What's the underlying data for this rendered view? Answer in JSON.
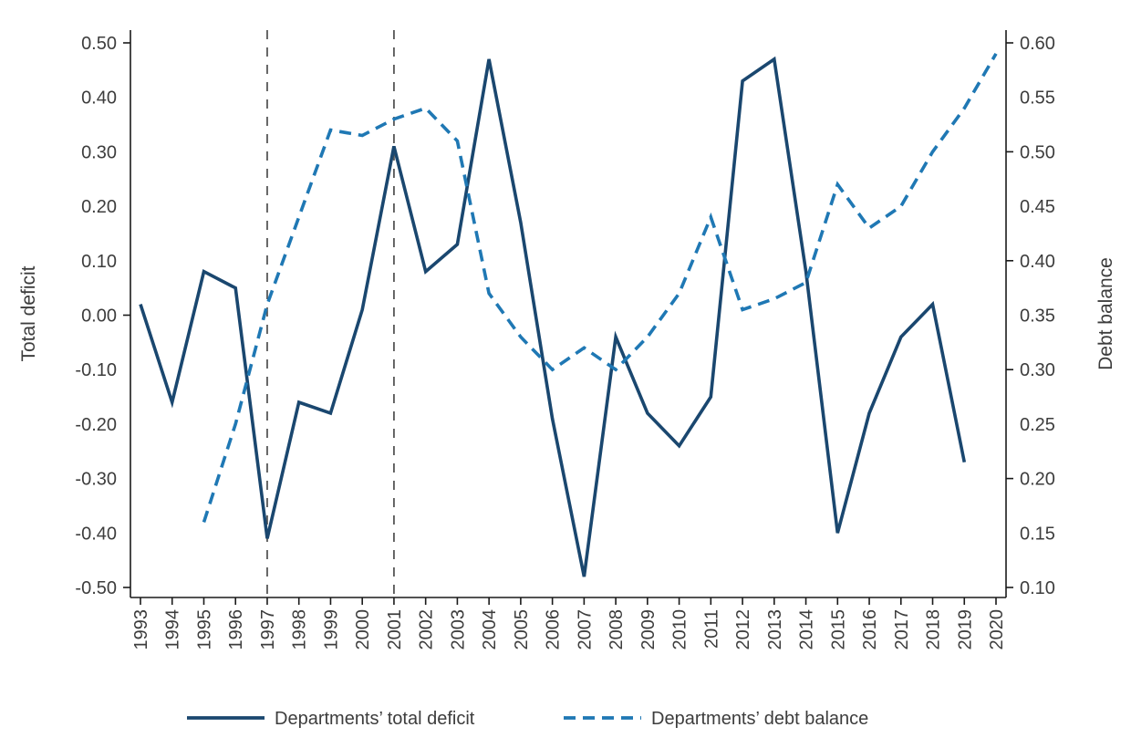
{
  "figure": {
    "background": "#ffffff"
  },
  "styles": {
    "axis_color": "#1a1a1a",
    "text_color": "#3d3d3d",
    "ref_line_color": "#4d4d4d"
  },
  "chart_data": {
    "type": "line",
    "title": "",
    "x": {
      "label": "",
      "range": [
        1993,
        2020
      ],
      "ticks": [
        1993,
        1994,
        1995,
        1996,
        1997,
        1998,
        1999,
        2000,
        2001,
        2002,
        2003,
        2004,
        2005,
        2006,
        2007,
        2008,
        2009,
        2010,
        2011,
        2012,
        2013,
        2014,
        2015,
        2016,
        2017,
        2018,
        2019,
        2020
      ]
    },
    "left_axis": {
      "title": "Total deficit",
      "range": [
        -0.5,
        0.5
      ],
      "labels": [
        0.5,
        0.4,
        0.3,
        0.2,
        0.1,
        0.0,
        -0.1,
        -0.2,
        -0.3,
        -0.4,
        -0.5
      ],
      "tick_marks": [
        0.5,
        0.0,
        -0.5
      ]
    },
    "right_axis": {
      "title": "Debt balance",
      "range": [
        0.1,
        0.6
      ],
      "labels": [
        0.6,
        0.55,
        0.5,
        0.45,
        0.4,
        0.35,
        0.3,
        0.25,
        0.2,
        0.15,
        0.1
      ],
      "tick_marks": [
        0.6,
        0.5,
        0.4,
        0.3,
        0.2,
        0.1
      ]
    },
    "reference_lines_x": [
      1997,
      2001
    ],
    "grid": false,
    "legend_position": "bottom",
    "series": [
      {
        "name": "Departments’ total deficit",
        "axis": "left",
        "style": "solid",
        "color": "#1a476f",
        "points": [
          [
            1993,
            0.02
          ],
          [
            1994,
            -0.16
          ],
          [
            1995,
            0.08
          ],
          [
            1996,
            0.05
          ],
          [
            1997,
            -0.41
          ],
          [
            1998,
            -0.16
          ],
          [
            1999,
            -0.18
          ],
          [
            2000,
            0.01
          ],
          [
            2001,
            0.31
          ],
          [
            2002,
            0.08
          ],
          [
            2003,
            0.13
          ],
          [
            2004,
            0.47
          ],
          [
            2005,
            0.17
          ],
          [
            2006,
            -0.19
          ],
          [
            2007,
            -0.48
          ],
          [
            2008,
            -0.04
          ],
          [
            2009,
            -0.18
          ],
          [
            2010,
            -0.24
          ],
          [
            2011,
            -0.15
          ],
          [
            2012,
            0.43
          ],
          [
            2013,
            0.47
          ],
          [
            2014,
            0.08
          ],
          [
            2015,
            -0.4
          ],
          [
            2016,
            -0.18
          ],
          [
            2017,
            -0.04
          ],
          [
            2018,
            0.02
          ],
          [
            2019,
            -0.27
          ]
        ]
      },
      {
        "name": "Departments’ debt balance",
        "axis": "right",
        "style": "dashed",
        "color": "#1f78b4",
        "points": [
          [
            1995,
            0.16
          ],
          [
            1996,
            0.25
          ],
          [
            1997,
            0.36
          ],
          [
            1998,
            0.44
          ],
          [
            1999,
            0.52
          ],
          [
            2000,
            0.515
          ],
          [
            2001,
            0.53
          ],
          [
            2002,
            0.54
          ],
          [
            2003,
            0.51
          ],
          [
            2004,
            0.37
          ],
          [
            2005,
            0.33
          ],
          [
            2006,
            0.3
          ],
          [
            2007,
            0.32
          ],
          [
            2008,
            0.3
          ],
          [
            2009,
            0.33
          ],
          [
            2010,
            0.37
          ],
          [
            2011,
            0.44
          ],
          [
            2012,
            0.355
          ],
          [
            2013,
            0.365
          ],
          [
            2014,
            0.38
          ],
          [
            2015,
            0.47
          ],
          [
            2016,
            0.43
          ],
          [
            2017,
            0.45
          ],
          [
            2018,
            0.5
          ],
          [
            2019,
            0.54
          ],
          [
            2020,
            0.59
          ]
        ]
      }
    ]
  }
}
